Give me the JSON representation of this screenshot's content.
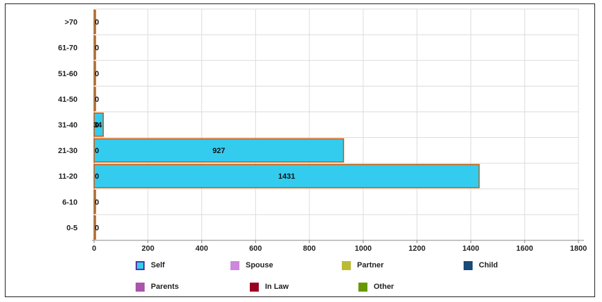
{
  "chart_data": {
    "type": "bar",
    "orientation": "horizontal",
    "categories": [
      "0-5",
      "6-10",
      "11-20",
      "21-30",
      "31-40",
      "41-50",
      "51-60",
      "61-70",
      ">70"
    ],
    "series": [
      {
        "name": "Self",
        "values": [
          0,
          0,
          1431,
          927,
          34,
          0,
          0,
          0,
          0
        ],
        "color": "#33ccee",
        "border": "#cc5500"
      },
      {
        "name": "Spouse",
        "values": [
          0,
          0,
          0,
          0,
          0,
          0,
          0,
          0,
          0
        ],
        "color": "#cc88dd"
      },
      {
        "name": "Partner",
        "values": [
          0,
          0,
          0,
          0,
          0,
          0,
          0,
          0,
          0
        ],
        "color": "#bbbb33"
      },
      {
        "name": "Child",
        "values": [
          0,
          0,
          0,
          0,
          0,
          0,
          0,
          0,
          0
        ],
        "color": "#1a4a77"
      },
      {
        "name": "Parents",
        "values": [
          0,
          0,
          0,
          0,
          0,
          0,
          0,
          0,
          0
        ],
        "color": "#aa55aa"
      },
      {
        "name": "In Law",
        "values": [
          0,
          0,
          0,
          0,
          0,
          0,
          0,
          0,
          0
        ],
        "color": "#990022"
      },
      {
        "name": "Other",
        "values": [
          0,
          0,
          0,
          0,
          0,
          0,
          0,
          0,
          0
        ],
        "color": "#669900"
      }
    ],
    "x_ticks": [
      "0",
      "200",
      "400",
      "600",
      "800",
      "1000",
      "1200",
      "1400",
      "1600",
      "1800"
    ],
    "xlim": [
      0,
      1800
    ],
    "grid": true,
    "legend_position": "bottom"
  }
}
